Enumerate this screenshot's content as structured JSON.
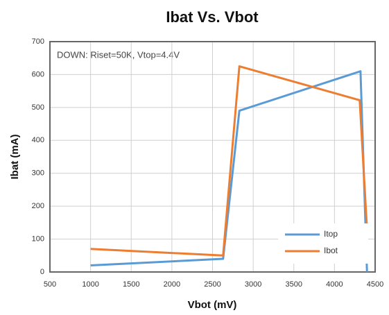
{
  "chart_data": {
    "type": "line",
    "title": "Ibat Vs. Vbot",
    "annotation": "DOWN: Riset=50K, Vtop=4.4V",
    "x_label": "Vbot (mV)",
    "y_label": "Ibat (mA)",
    "series": [
      {
        "name": "Itop",
        "color": "#5b9bd5",
        "x": [
          1000,
          2630,
          2830,
          4320,
          4400
        ],
        "values": [
          20,
          40,
          490,
          610,
          0
        ]
      },
      {
        "name": "Ibot",
        "color": "#ed7d31",
        "x": [
          1000,
          2630,
          2830,
          4310,
          4400
        ],
        "values": [
          70,
          50,
          625,
          522,
          130
        ]
      }
    ],
    "xlim": [
      500,
      4500
    ],
    "xticks": [
      500,
      1000,
      1500,
      2000,
      2500,
      3000,
      3500,
      4000,
      4500
    ],
    "ylim": [
      0,
      700
    ],
    "yticks": [
      0,
      100,
      200,
      300,
      400,
      500,
      600,
      700
    ],
    "grid": true,
    "legend": "lower right"
  }
}
